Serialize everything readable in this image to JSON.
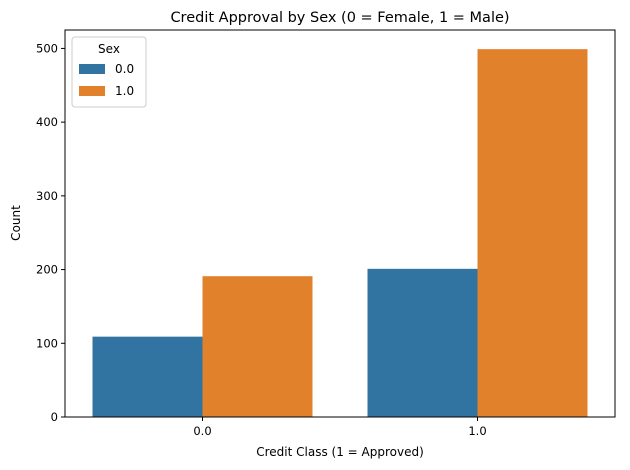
{
  "chart_data": {
    "type": "bar",
    "title": "Credit Approval by Sex (0 = Female, 1 = Male)",
    "xlabel": "Credit Class (1 = Approved)",
    "ylabel": "Count",
    "categories": [
      "0.0",
      "1.0"
    ],
    "series": [
      {
        "name": "0.0",
        "values": [
          109,
          201
        ],
        "color": "#3274a1"
      },
      {
        "name": "1.0",
        "values": [
          191,
          499
        ],
        "color": "#e1812c"
      }
    ],
    "ylim": [
      0,
      525
    ],
    "yticks": [
      0,
      100,
      200,
      300,
      400,
      500
    ],
    "grid": false,
    "legend": {
      "title": "Sex",
      "placement": "top-left"
    }
  }
}
